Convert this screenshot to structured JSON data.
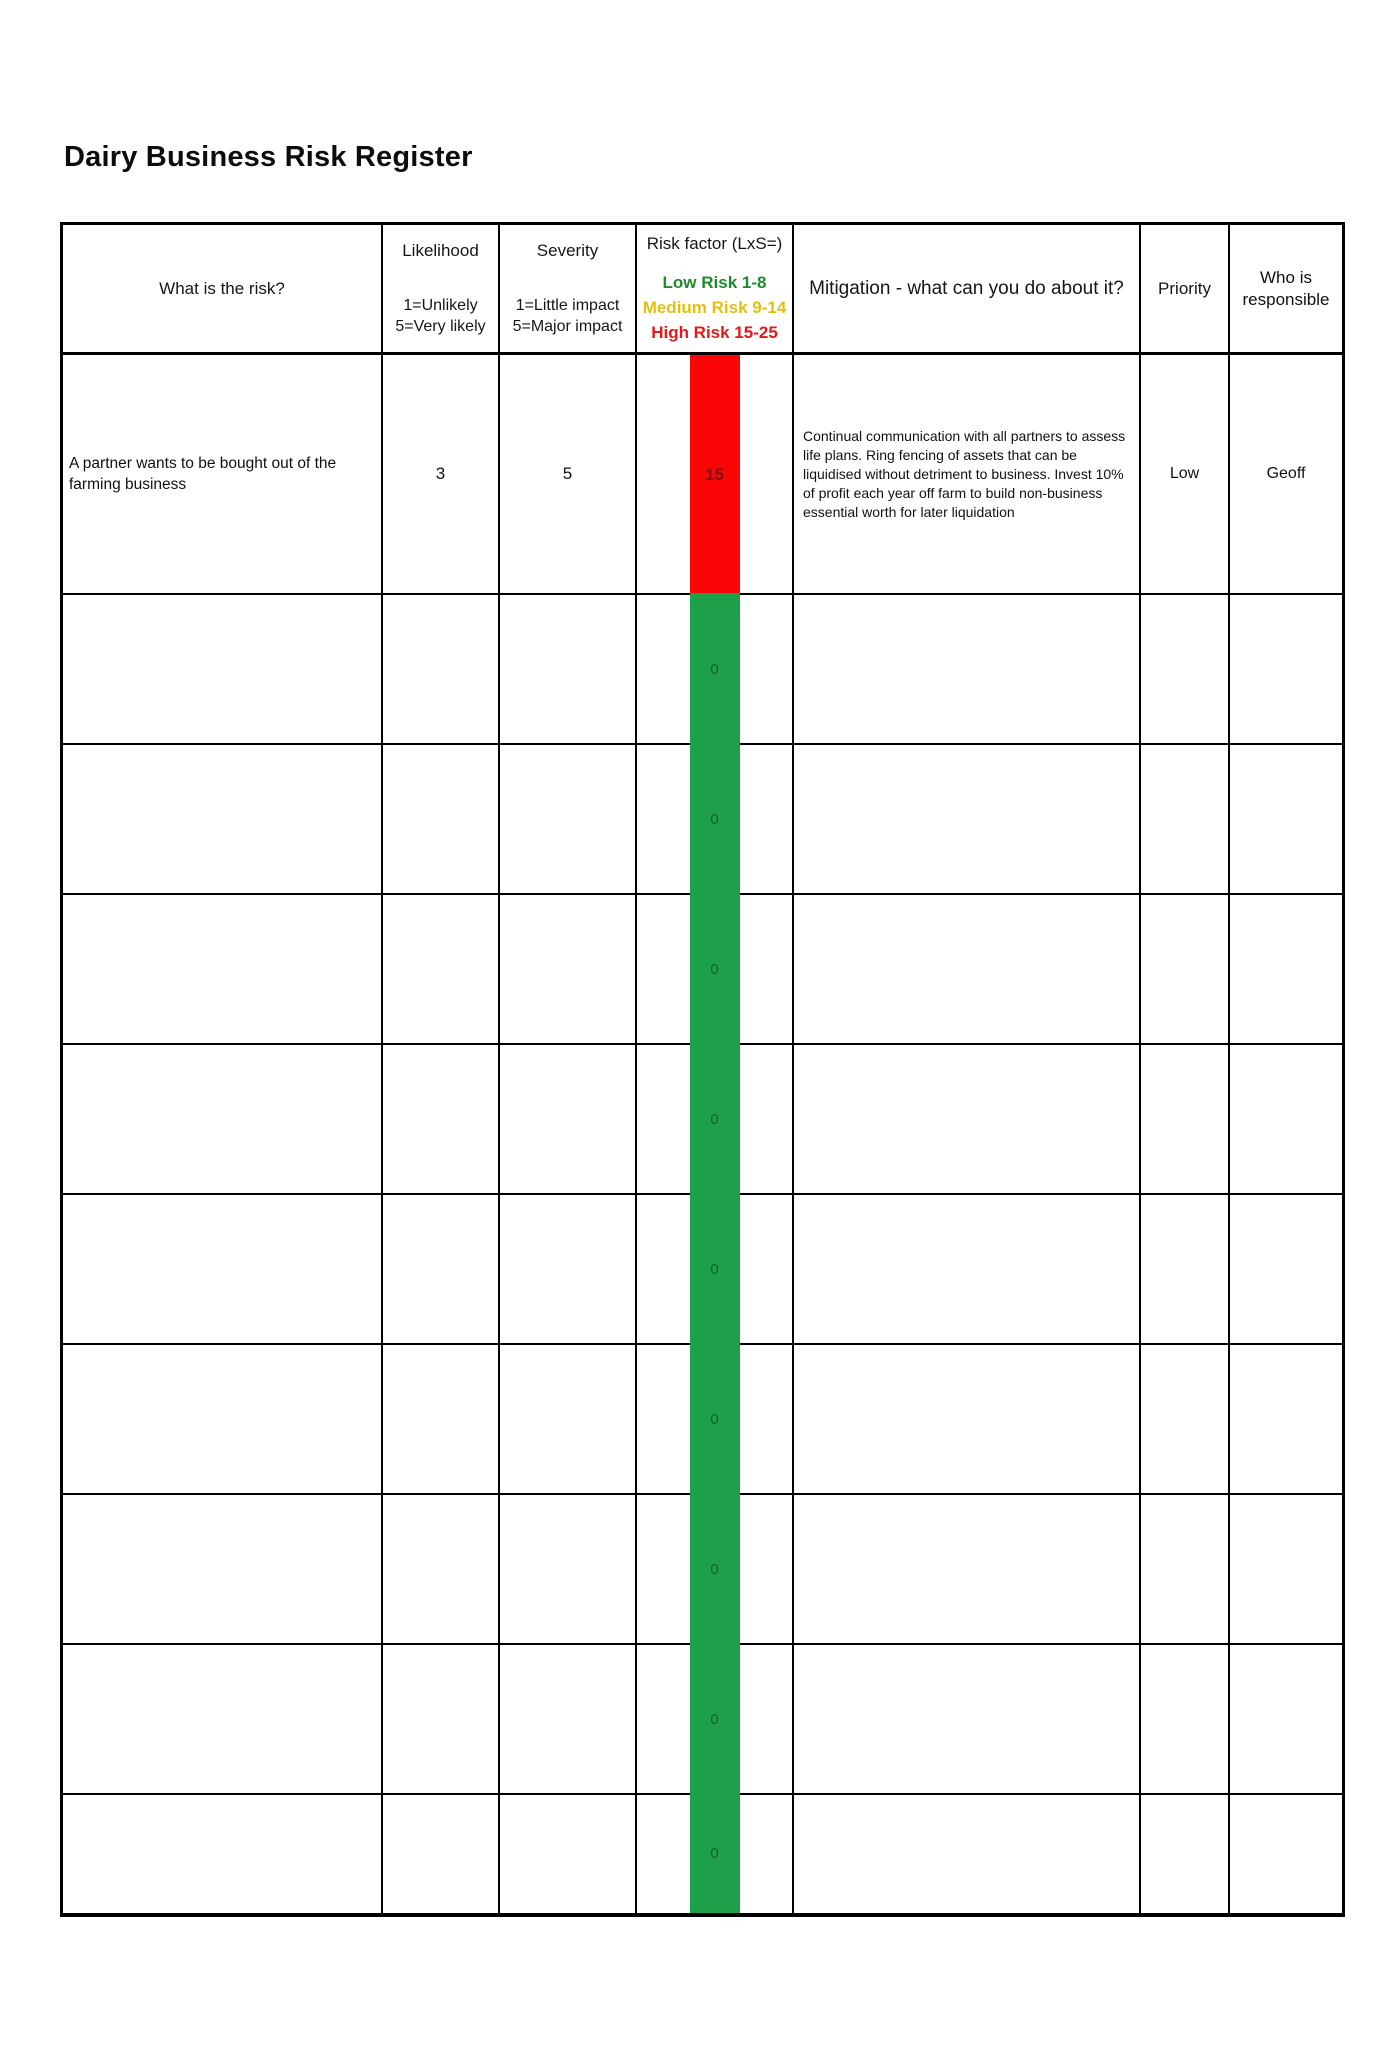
{
  "page": {
    "title": "Dairy Business Risk Register"
  },
  "table": {
    "headers": {
      "risk": "What is the risk?",
      "likelihood": {
        "title": "Likelihood",
        "scale_low": "1=Unlikely",
        "scale_high": "5=Very likely"
      },
      "severity": {
        "title": "Severity",
        "scale_low": "1=Little impact",
        "scale_high": "5=Major impact"
      },
      "risk_factor": {
        "title": "Risk factor (LxS=)",
        "legend_low": "Low Risk 1-8",
        "legend_medium": "Medium Risk 9-14",
        "legend_high": "High Risk 15-25"
      },
      "mitigation": "Mitigation - what can you do about it?",
      "priority": "Priority",
      "responsible": "Who is responsible"
    },
    "colors": {
      "low_risk_text": "#1f8b2c",
      "medium_risk_text": "#e3c00f",
      "high_risk_text": "#e21a1a",
      "high_stripe_fill": "#fb0606",
      "low_stripe_fill": "#1ea04b"
    },
    "rows": [
      {
        "risk": "A partner wants to be bought out of the farming business",
        "likelihood": "3",
        "severity": "5",
        "risk_factor": "15",
        "risk_level": "high",
        "mitigation": "Continual communication with all partners to assess life plans. Ring fencing of assets that can be liquidised without detriment to business. Invest 10% of profit each year off farm to build non-business essential worth for later liquidation",
        "priority": "Low",
        "responsible": "Geoff"
      },
      {
        "risk": "",
        "likelihood": "",
        "severity": "",
        "risk_factor": "0",
        "risk_level": "low",
        "mitigation": "",
        "priority": "",
        "responsible": ""
      },
      {
        "risk": "",
        "likelihood": "",
        "severity": "",
        "risk_factor": "0",
        "risk_level": "low",
        "mitigation": "",
        "priority": "",
        "responsible": ""
      },
      {
        "risk": "",
        "likelihood": "",
        "severity": "",
        "risk_factor": "0",
        "risk_level": "low",
        "mitigation": "",
        "priority": "",
        "responsible": ""
      },
      {
        "risk": "",
        "likelihood": "",
        "severity": "",
        "risk_factor": "0",
        "risk_level": "low",
        "mitigation": "",
        "priority": "",
        "responsible": ""
      },
      {
        "risk": "",
        "likelihood": "",
        "severity": "",
        "risk_factor": "0",
        "risk_level": "low",
        "mitigation": "",
        "priority": "",
        "responsible": ""
      },
      {
        "risk": "",
        "likelihood": "",
        "severity": "",
        "risk_factor": "0",
        "risk_level": "low",
        "mitigation": "",
        "priority": "",
        "responsible": ""
      },
      {
        "risk": "",
        "likelihood": "",
        "severity": "",
        "risk_factor": "0",
        "risk_level": "low",
        "mitigation": "",
        "priority": "",
        "responsible": ""
      },
      {
        "risk": "",
        "likelihood": "",
        "severity": "",
        "risk_factor": "0",
        "risk_level": "low",
        "mitigation": "",
        "priority": "",
        "responsible": ""
      },
      {
        "risk": "",
        "likelihood": "",
        "severity": "",
        "risk_factor": "0",
        "risk_level": "low",
        "mitigation": "",
        "priority": "",
        "responsible": ""
      }
    ]
  }
}
